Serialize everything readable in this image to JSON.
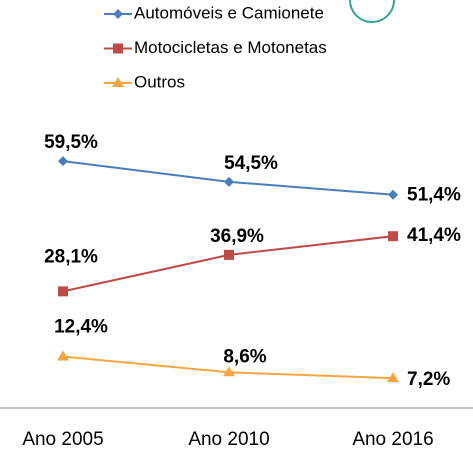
{
  "chart_data": {
    "type": "line",
    "categories": [
      "Ano 2005",
      "Ano 2010",
      "Ano 2016"
    ],
    "series": [
      {
        "name": "Automóveis e Camionete",
        "color": "#4a7ebb",
        "marker": "diamond",
        "values": [
          59.5,
          54.5,
          51.4
        ],
        "value_labels": [
          "59,5%",
          "54,5%",
          "51,4%"
        ]
      },
      {
        "name": "Motocicletas e Motonetas",
        "color": "#be4b48",
        "marker": "square",
        "values": [
          28.1,
          36.9,
          41.4
        ],
        "value_labels": [
          "28,1%",
          "36,9%",
          "41,4%"
        ]
      },
      {
        "name": "Outros",
        "color": "#f5a545",
        "marker": "triangle",
        "values": [
          12.4,
          8.6,
          7.2
        ],
        "value_labels": [
          "12,4%",
          "8,6%",
          "7,2%"
        ]
      }
    ]
  }
}
